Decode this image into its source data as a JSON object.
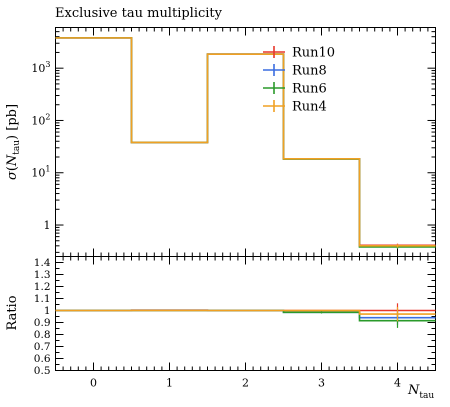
{
  "chart_data": [
    {
      "type": "line",
      "title": "Exclusive tau multiplicity",
      "ylabel": "σ(N_tau) [pb]",
      "ylabel_parts": {
        "sym": "σ",
        "open": "(",
        "N": "N",
        "sub": "tau",
        "close": ") [pb]"
      },
      "xlabel": "N_tau",
      "xlabel_parts": {
        "N": "N",
        "sub": "tau"
      },
      "yscale": "log",
      "ylim": [
        0.25,
        6000
      ],
      "xlim": [
        -0.5,
        4.5
      ],
      "bin_edges": [
        -0.5,
        0.5,
        1.5,
        2.5,
        3.5,
        4.5
      ],
      "x_ticks": [
        "0",
        "1",
        "2",
        "3",
        "4"
      ],
      "y_ticks": [
        {
          "v": 1,
          "base": "1",
          "exp": ""
        },
        {
          "v": 10,
          "base": "10",
          "exp": "1"
        },
        {
          "v": 100,
          "base": "10",
          "exp": "2"
        },
        {
          "v": 1000,
          "base": "10",
          "exp": "3"
        }
      ],
      "legend_placement": "top-right",
      "series": [
        {
          "name": "Run10",
          "color": "#e8362a",
          "values": [
            3800,
            38,
            1850,
            18.5,
            0.41
          ],
          "errors": [
            0,
            0,
            0,
            0,
            0.03
          ]
        },
        {
          "name": "Run8",
          "color": "#3a6de0",
          "values": [
            3800,
            38,
            1850,
            18.5,
            0.39
          ],
          "errors": [
            0,
            0,
            0,
            0,
            0.03
          ]
        },
        {
          "name": "Run6",
          "color": "#2a9a2a",
          "values": [
            3800,
            38,
            1850,
            18.3,
            0.38
          ],
          "errors": [
            0,
            0,
            0,
            0,
            0.03
          ]
        },
        {
          "name": "Run4",
          "color": "#f0a023",
          "values": [
            3800,
            38,
            1850,
            18.5,
            0.4
          ],
          "errors": [
            0,
            0,
            0,
            0,
            0.03
          ]
        }
      ]
    },
    {
      "type": "line",
      "ylabel": "Ratio",
      "ylim": [
        0.5,
        1.45
      ],
      "xlim": [
        -0.5,
        4.5
      ],
      "bin_edges": [
        -0.5,
        0.5,
        1.5,
        2.5,
        3.5,
        4.5
      ],
      "y_ticks": [
        "0.5",
        "0.6",
        "0.7",
        "0.8",
        "0.9",
        "1",
        "1.1",
        "1.2",
        "1.3",
        "1.4"
      ],
      "series": [
        {
          "name": "Run10",
          "color": "#e8362a",
          "values": [
            1.0,
            1.003,
            1.0,
            1.0,
            1.0
          ],
          "errors": [
            0,
            0,
            0,
            0,
            0.06
          ]
        },
        {
          "name": "Run8",
          "color": "#3a6de0",
          "values": [
            1.0,
            1.0,
            1.0,
            0.985,
            0.94
          ],
          "errors": [
            0,
            0,
            0,
            0,
            0.06
          ]
        },
        {
          "name": "Run6",
          "color": "#2a9a2a",
          "values": [
            1.0,
            1.0,
            1.0,
            0.985,
            0.915
          ],
          "errors": [
            0,
            0,
            0,
            0.01,
            0.06
          ]
        },
        {
          "name": "Run4",
          "color": "#f0a023",
          "values": [
            1.0,
            1.0,
            1.0,
            1.0,
            0.97
          ],
          "errors": [
            0,
            0,
            0,
            0,
            0.06
          ]
        }
      ]
    }
  ]
}
